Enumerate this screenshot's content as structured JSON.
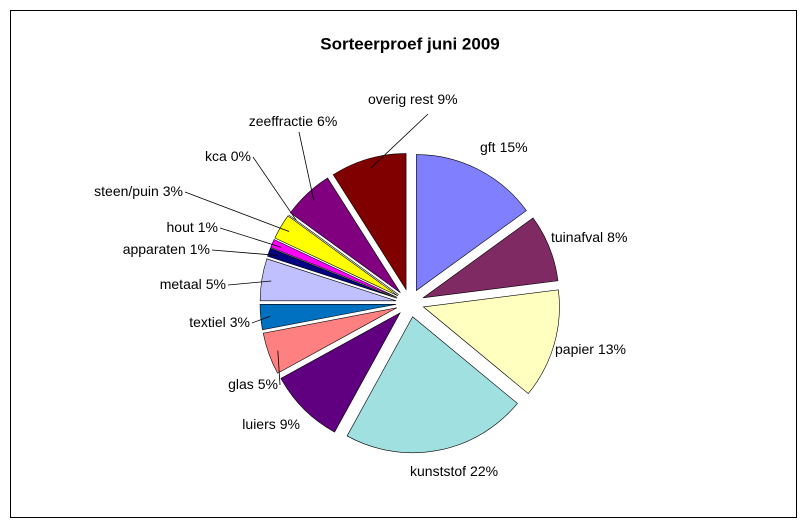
{
  "chart_data": {
    "type": "pie",
    "title": "Sorteerproef juni 2009",
    "categories": [
      "gft",
      "tuinafval",
      "papier",
      "kunststof",
      "luiers",
      "glas",
      "textiel",
      "metaal",
      "apparaten",
      "hout",
      "steen/puin",
      "kca",
      "zeeffractie",
      "overig rest"
    ],
    "values": [
      15,
      8,
      13,
      22,
      9,
      5,
      3,
      5,
      1,
      1,
      3,
      0,
      6,
      9
    ],
    "value_labels": [
      "15%",
      "8%",
      "13%",
      "22%",
      "9%",
      "5%",
      "3%",
      "5%",
      "1%",
      "1%",
      "3%",
      "0%",
      "6%",
      "9%"
    ],
    "colors": [
      "#8080ff",
      "#7f2a62",
      "#ffffc0",
      "#a0e0e0",
      "#600080",
      "#ff8080",
      "#0070c0",
      "#c0c0ff",
      "#000080",
      "#ff00ff",
      "#ffff00",
      "#00ffff",
      "#800080",
      "#800000"
    ]
  }
}
